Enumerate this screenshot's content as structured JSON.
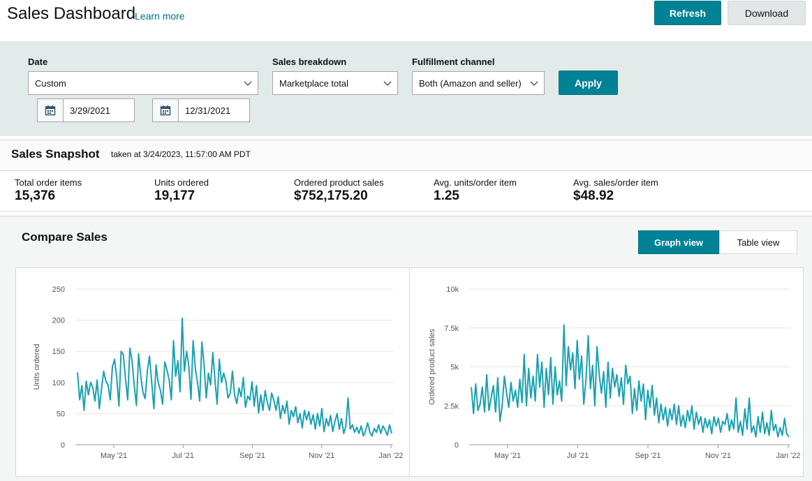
{
  "header": {
    "title": "Sales Dashboard",
    "learn_more": "Learn more",
    "refresh_label": "Refresh",
    "download_label": "Download"
  },
  "filters": {
    "date_label": "Date",
    "date_value": "Custom",
    "start_date": "3/29/2021",
    "end_date": "12/31/2021",
    "breakdown_label": "Sales breakdown",
    "breakdown_value": "Marketplace total",
    "channel_label": "Fulfillment channel",
    "channel_value": "Both (Amazon and seller)",
    "apply_label": "Apply"
  },
  "snapshot": {
    "title": "Sales Snapshot",
    "taken_at": "taken at 3/24/2023, 11:57:00 AM PDT",
    "metrics": [
      {
        "label": "Total order items",
        "value": "15,376"
      },
      {
        "label": "Units ordered",
        "value": "19,177"
      },
      {
        "label": "Ordered product sales",
        "value": "$752,175.20"
      },
      {
        "label": "Avg. units/order item",
        "value": "1.25"
      },
      {
        "label": "Avg. sales/order item",
        "value": "$48.92"
      }
    ]
  },
  "compare": {
    "title": "Compare Sales",
    "graph_view": "Graph view",
    "table_view": "Table view",
    "active_view": "graph"
  },
  "colors": {
    "accent": "#008296",
    "line": "#1aa1b0",
    "filter_bg": "#e3eaea"
  },
  "chart_data": [
    {
      "type": "line",
      "ylabel": "Units ordered",
      "ylim": [
        0,
        250
      ],
      "yticks": [
        "0",
        "50",
        "100",
        "150",
        "200",
        "250"
      ],
      "xticks": [
        "May '21",
        "Jul '21",
        "Sep '21",
        "Nov '21",
        "Jan '22"
      ],
      "series": [
        {
          "values": [
            116,
            72,
            95,
            55,
            102,
            80,
            100,
            92,
            70,
            104,
            58,
            90,
            118,
            102,
            96,
            72,
            125,
            137,
            106,
            62,
            150,
            145,
            105,
            72,
            155,
            135,
            95,
            63,
            146,
            110,
            84,
            74,
            118,
            142,
            100,
            58,
            128,
            100,
            87,
            65,
            133,
            120,
            104,
            72,
            167,
            110,
            135,
            85,
            203,
            118,
            150,
            127,
            73,
            167,
            122,
            100,
            70,
            165,
            128,
            75,
            115,
            96,
            148,
            104,
            65,
            137,
            100,
            115,
            102,
            75,
            83,
            118,
            80,
            66,
            91,
            77,
            108,
            60,
            78,
            72,
            101,
            62,
            95,
            51,
            80,
            55,
            87,
            68,
            55,
            83,
            71,
            55,
            77,
            42,
            63,
            50,
            70,
            33,
            55,
            45,
            61,
            35,
            50,
            27,
            55,
            40,
            53,
            33,
            48,
            25,
            50,
            30,
            58,
            21,
            42,
            30,
            47,
            21,
            38,
            50,
            25,
            42,
            18,
            30,
            75,
            25,
            32,
            20,
            28,
            18,
            30,
            14,
            22,
            35,
            20,
            14,
            26,
            20,
            32,
            18,
            30,
            24,
            15,
            32,
            18
          ]
        }
      ]
    },
    {
      "type": "line",
      "ylabel": "Ordered product sales",
      "ylim": [
        0,
        10000
      ],
      "yticks": [
        "0",
        "2.5k",
        "5k",
        "7.5k",
        "10k"
      ],
      "xticks": [
        "May '21",
        "Jul '21",
        "Sep '21",
        "Nov '21",
        "Jan '22"
      ],
      "series": [
        {
          "values": [
            3700,
            2000,
            3900,
            2200,
            2600,
            3700,
            2100,
            4500,
            2200,
            3000,
            3800,
            2100,
            4300,
            1500,
            2500,
            4400,
            3300,
            2400,
            4000,
            2800,
            3500,
            2400,
            4200,
            2700,
            5800,
            2500,
            4900,
            3000,
            4400,
            2800,
            5800,
            3700,
            5300,
            2400,
            4900,
            3200,
            5600,
            2600,
            5000,
            3200,
            4100,
            2800,
            7700,
            3800,
            6300,
            4800,
            5900,
            3600,
            6700,
            4200,
            5700,
            2600,
            4200,
            7000,
            3600,
            5100,
            2500,
            6300,
            4500,
            3300,
            4700,
            2400,
            5300,
            3000,
            4900,
            3700,
            4500,
            3100,
            4300,
            2600,
            5100,
            3900,
            4400,
            2000,
            3600,
            2200,
            4100,
            2800,
            3900,
            1600,
            3500,
            2400,
            3800,
            1900,
            3000,
            1400,
            2600,
            1600,
            2400,
            1200,
            2300,
            1600,
            2600,
            1300,
            2500,
            1200,
            1900,
            1100,
            2200,
            1500,
            2500,
            1000,
            2100,
            1300,
            1800,
            800,
            1700,
            1100,
            1600,
            700,
            1800,
            1200,
            1700,
            800,
            1500,
            1300,
            2000,
            900,
            1600,
            1000,
            3000,
            800,
            1500,
            600,
            2300,
            1000,
            3000,
            800,
            1200,
            500,
            1800,
            800,
            2100,
            700,
            1400,
            600,
            2200,
            900,
            1300,
            500,
            1100,
            600,
            1700,
            700,
            500
          ]
        }
      ]
    }
  ]
}
